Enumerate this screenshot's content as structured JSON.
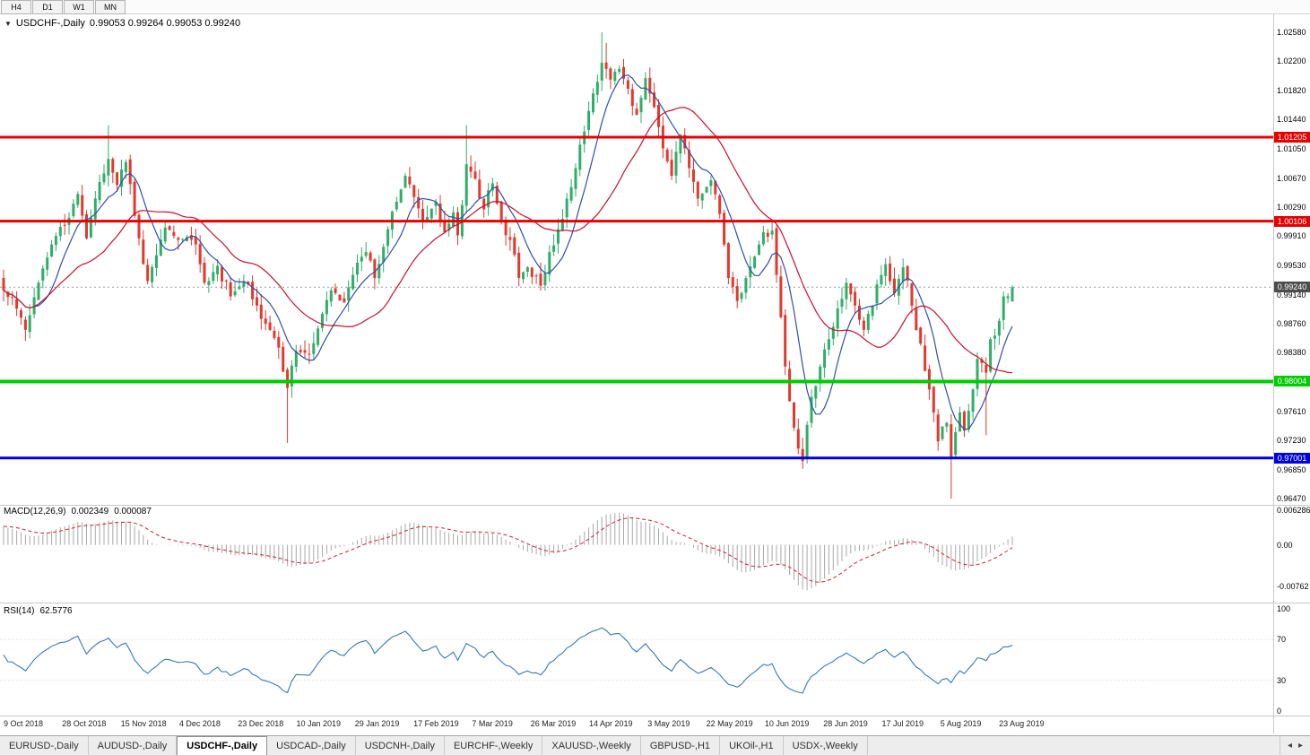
{
  "toolbar": {
    "timeframes": [
      "H4",
      "D1",
      "W1",
      "MN"
    ]
  },
  "chart": {
    "symbol_label": "USDCHF-,Daily",
    "ohlc_readout": "0.99053 0.99264 0.99053 0.99240"
  },
  "chart_data": {
    "type": "candlestick",
    "symbol": "USDCHF",
    "timeframe": "Daily",
    "candle_count": 232,
    "x_axis": {
      "labels": [
        "9 Oct 2018",
        "28 Oct 2018",
        "15 Nov 2018",
        "4 Dec 2018",
        "23 Dec 2018",
        "10 Jan 2019",
        "29 Jan 2019",
        "17 Feb 2019",
        "7 Mar 2019",
        "26 Mar 2019",
        "14 Apr 2019",
        "3 May 2019",
        "22 May 2019",
        "10 Jun 2019",
        "28 Jun 2019",
        "17 Jul 2019",
        "5 Aug 2019",
        "23 Aug 2019"
      ]
    },
    "y_axis": {
      "ticks": [
        "1.02580",
        "1.02200",
        "1.01820",
        "1.01440",
        "1.01050",
        "1.00670",
        "1.00290",
        "0.99910",
        "0.99530",
        "0.99140",
        "0.98760",
        "0.98380",
        "0.97610",
        "0.97230",
        "0.96850",
        "0.96470"
      ],
      "price_max": 1.02815,
      "price_min": 0.964
    },
    "close_keyframes": [
      [
        0,
        0.992
      ],
      [
        3,
        0.9896
      ],
      [
        5,
        0.9868
      ],
      [
        8,
        0.993
      ],
      [
        11,
        0.998
      ],
      [
        15,
        1.0015
      ],
      [
        17,
        1.0046
      ],
      [
        19,
        0.9988
      ],
      [
        21,
        1.004
      ],
      [
        24,
        1.0092
      ],
      [
        26,
        1.0058
      ],
      [
        28,
        1.0088
      ],
      [
        31,
        0.9988
      ],
      [
        33,
        0.9932
      ],
      [
        37,
        1.0002
      ],
      [
        40,
        0.9986
      ],
      [
        44,
        0.998
      ],
      [
        46,
        0.993
      ],
      [
        49,
        0.9952
      ],
      [
        52,
        0.9912
      ],
      [
        55,
        0.9932
      ],
      [
        58,
        0.99
      ],
      [
        61,
        0.9868
      ],
      [
        63,
        0.9845
      ],
      [
        65,
        0.9792
      ],
      [
        67,
        0.984
      ],
      [
        70,
        0.9836
      ],
      [
        72,
        0.987
      ],
      [
        75,
        0.992
      ],
      [
        78,
        0.9904
      ],
      [
        81,
        0.9956
      ],
      [
        83,
        0.997
      ],
      [
        85,
        0.9936
      ],
      [
        88,
        1.0
      ],
      [
        90,
        1.0036
      ],
      [
        92,
        1.007
      ],
      [
        94,
        1.0042
      ],
      [
        96,
        1.0012
      ],
      [
        99,
        1.0036
      ],
      [
        101,
        0.9996
      ],
      [
        103,
        1.0022
      ],
      [
        104,
        0.9992
      ],
      [
        106,
        1.0085
      ],
      [
        108,
        1.0066
      ],
      [
        110,
        1.0026
      ],
      [
        112,
        1.006
      ],
      [
        114,
        1.0012
      ],
      [
        116,
        0.9986
      ],
      [
        118,
        0.9936
      ],
      [
        120,
        0.995
      ],
      [
        123,
        0.9926
      ],
      [
        125,
        0.997
      ],
      [
        127,
        1.0
      ],
      [
        129,
        1.004
      ],
      [
        131,
        1.008
      ],
      [
        133,
        1.0128
      ],
      [
        135,
        1.0178
      ],
      [
        137,
        1.0218
      ],
      [
        139,
        1.0196
      ],
      [
        141,
        1.021
      ],
      [
        143,
        1.0184
      ],
      [
        145,
        1.015
      ],
      [
        147,
        1.0198
      ],
      [
        149,
        1.016
      ],
      [
        151,
        1.0106
      ],
      [
        153,
        1.007
      ],
      [
        155,
        1.0124
      ],
      [
        157,
        1.008
      ],
      [
        159,
        1.004
      ],
      [
        162,
        1.0064
      ],
      [
        164,
        1.002
      ],
      [
        166,
        0.9936
      ],
      [
        168,
        0.9906
      ],
      [
        170,
        0.9936
      ],
      [
        172,
        0.9964
      ],
      [
        174,
        0.9996
      ],
      [
        176,
        0.9998
      ],
      [
        177,
        0.994
      ],
      [
        179,
        0.982
      ],
      [
        181,
        0.974
      ],
      [
        183,
        0.9696
      ],
      [
        185,
        0.978
      ],
      [
        187,
        0.982
      ],
      [
        189,
        0.9856
      ],
      [
        191,
        0.9896
      ],
      [
        193,
        0.993
      ],
      [
        195,
        0.99
      ],
      [
        197,
        0.9868
      ],
      [
        199,
        0.99
      ],
      [
        201,
        0.994
      ],
      [
        202,
        0.9954
      ],
      [
        204,
        0.9916
      ],
      [
        206,
        0.995
      ],
      [
        208,
        0.99
      ],
      [
        210,
        0.985
      ],
      [
        212,
        0.979
      ],
      [
        214,
        0.9722
      ],
      [
        216,
        0.9746
      ],
      [
        217,
        0.9702
      ],
      [
        219,
        0.976
      ],
      [
        220,
        0.9736
      ],
      [
        222,
        0.979
      ],
      [
        223,
        0.983
      ],
      [
        225,
        0.9812
      ],
      [
        226,
        0.9856
      ],
      [
        228,
        0.988
      ],
      [
        229,
        0.9912
      ],
      [
        231,
        0.9924
      ]
    ],
    "extremes": [
      {
        "i": 24,
        "high": 1.0136
      },
      {
        "i": 65,
        "low": 0.972
      },
      {
        "i": 106,
        "high": 1.0136
      },
      {
        "i": 137,
        "high": 1.0258
      },
      {
        "i": 138,
        "high": 1.0244
      },
      {
        "i": 183,
        "low": 0.9686
      },
      {
        "i": 217,
        "low": 0.9647
      },
      {
        "i": 225,
        "low": 0.973
      }
    ],
    "last_candle": {
      "open": 0.99053,
      "high": 0.99264,
      "low": 0.99053,
      "close": 0.9924
    },
    "horizontal_lines": [
      {
        "value": 1.01205,
        "label": "1.01205",
        "color": "#e60000",
        "width": 3
      },
      {
        "value": 1.00106,
        "label": "1.00106",
        "color": "#e60000",
        "width": 3
      },
      {
        "value": 0.98004,
        "label": "0.98004",
        "color": "#00cc00",
        "width": 4
      },
      {
        "value": 0.97001,
        "label": "0.97001",
        "color": "#0000dd",
        "width": 3
      }
    ],
    "current_price": {
      "value": 0.9924,
      "label": "0.99240"
    },
    "moving_averages": [
      {
        "period": 8,
        "color": "#2f4fae"
      },
      {
        "period": 24,
        "color": "#c8102e"
      }
    ],
    "macd": {
      "label": "MACD(12,26,9)",
      "value_main": "0.002349",
      "value_signal": "0.000087",
      "fast": 12,
      "slow": 26,
      "signal": 9,
      "axis_ticks": [
        "0.006286",
        "0.00",
        "-0.00762"
      ],
      "v_max": 0.0068,
      "v_min": -0.0102
    },
    "rsi": {
      "label": "RSI(14)",
      "value": "62.5776",
      "period": 14,
      "axis_ticks": [
        100,
        70,
        30,
        0
      ],
      "levels": [
        70,
        30
      ]
    },
    "colors": {
      "up": "#2eae68",
      "down": "#e2382e",
      "macd_hist": "#a8a8a8",
      "macd_signal": "#cc2233",
      "rsi": "#3879b8",
      "current_price_box": "#4d4d4d"
    }
  },
  "tab_bar": {
    "active_index": 2,
    "tabs": [
      "EURUSD-,Daily",
      "AUDUSD-,Daily",
      "USDCHF-,Daily",
      "USDCAD-,Daily",
      "USDCNH-,Daily",
      "EURCHF-,Weekly",
      "XAUUSD-,Weekly",
      "GBPUSD-,H1",
      "UKOil-,H1",
      "USDX-,Weekly"
    ]
  }
}
